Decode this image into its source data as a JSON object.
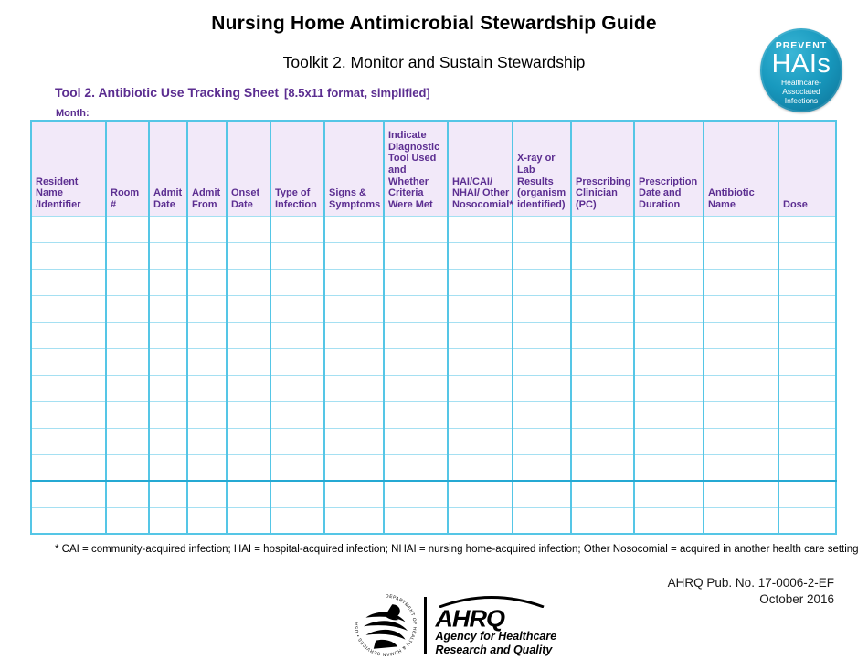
{
  "colors": {
    "heading-purple": "#5B2D90",
    "header-bg": "#F2E9F9",
    "header-text": "#5C2E91",
    "border-cyan": "#55C6E6",
    "border-light": "#A5E0F2",
    "border-thick": "#25A9D3",
    "badge-teal": "#1899BE",
    "badge-rim": "#0B7294"
  },
  "header": {
    "title": "Nursing Home Antimicrobial Stewardship Guide",
    "subtitle": "Toolkit 2. Monitor and Sustain Stewardship"
  },
  "badge": {
    "prevent": "PREVENT",
    "hais": "HAIs",
    "sub_lines": [
      "Healthcare-",
      "Associated",
      "Infections"
    ]
  },
  "tool": {
    "heading": "Tool 2. Antibiotic Use Tracking Sheet",
    "format_note": "[8.5x11 format, simplified]",
    "month_label": "Month:"
  },
  "table": {
    "columns": [
      "Resident Name /Identifier",
      "Room #",
      "Admit Date",
      "Admit From",
      "Onset Date",
      "Type of Infection",
      "Signs & Symptoms",
      "Indicate Diagnostic Tool Used and Whether Criteria Were Met",
      "HAI/CAI/ NHAI/ Other Nosocomial*",
      "X-ray or Lab Results (organism identified)",
      "Prescribing Clinician (PC)",
      "Prescription Date and Duration",
      "Antibiotic Name",
      "Dose"
    ],
    "row_count": 12,
    "cell_value": ""
  },
  "footnote": "* CAI = community-acquired infection; HAI = hospital-acquired infection; NHAI = nursing home-acquired infection; Other Nosocomial = acquired in another health care setting",
  "publication": {
    "number": "AHRQ Pub. No. 17-0006-2-EF",
    "date": "October 2016"
  },
  "footer": {
    "hhs_seal_text": "DEPARTMENT OF HEALTH & HUMAN SERVICES • USA",
    "ahrq_acronym": "AHRQ",
    "ahrq_name_line1": "Agency for Healthcare",
    "ahrq_name_line2": "Research and Quality"
  }
}
